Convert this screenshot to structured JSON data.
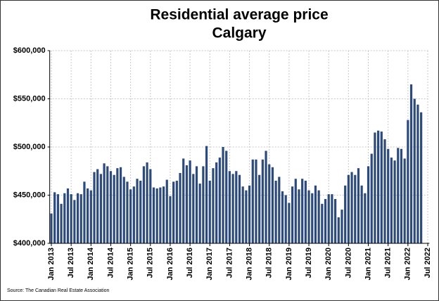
{
  "chart_data": {
    "type": "bar",
    "title": "Residential average price",
    "subtitle": "Calgary",
    "source": "Source: The Canadian Real Estate Association",
    "categories": [
      "Jan 2013",
      null,
      null,
      null,
      null,
      null,
      "Jul 2013",
      null,
      null,
      null,
      null,
      null,
      "Jan 2014",
      null,
      null,
      null,
      null,
      null,
      "Jul 2014",
      null,
      null,
      null,
      null,
      null,
      "Jan 2015",
      null,
      null,
      null,
      null,
      null,
      "Jul 2015",
      null,
      null,
      null,
      null,
      null,
      "Jan 2016",
      null,
      null,
      null,
      null,
      null,
      "Jul 2016",
      null,
      null,
      null,
      null,
      null,
      "Jan 2017",
      null,
      null,
      null,
      null,
      null,
      "Jul 2017",
      null,
      null,
      null,
      null,
      null,
      "Jan 2018",
      null,
      null,
      null,
      null,
      null,
      "Jul 2018",
      null,
      null,
      null,
      null,
      null,
      "Jan 2019",
      null,
      null,
      null,
      null,
      null,
      "Jul 2019",
      null,
      null,
      null,
      null,
      null,
      "Jan 2020",
      null,
      null,
      null,
      null,
      null,
      "Jul 2020",
      null,
      null,
      null,
      null,
      null,
      "Jan 2021",
      null,
      null,
      null,
      null,
      null,
      "Jul 2021",
      null,
      null,
      null,
      null,
      null,
      "Jan 2022",
      null,
      null,
      null,
      null,
      null,
      "Jul 2022"
    ],
    "values": [
      431000,
      453000,
      451000,
      441000,
      452000,
      457000,
      451000,
      445000,
      452000,
      451000,
      464000,
      457000,
      455000,
      474000,
      477000,
      472000,
      483000,
      480000,
      475000,
      471000,
      478000,
      479000,
      469000,
      464000,
      456000,
      459000,
      467000,
      465000,
      480000,
      484000,
      477000,
      458000,
      457000,
      458000,
      459000,
      466000,
      449000,
      464000,
      465000,
      473000,
      488000,
      481000,
      486000,
      472000,
      480000,
      462000,
      480000,
      501000,
      465000,
      478000,
      484000,
      489000,
      500000,
      496000,
      475000,
      472000,
      475000,
      471000,
      459000,
      455000,
      460000,
      487000,
      487000,
      471000,
      487000,
      496000,
      482000,
      479000,
      465000,
      469000,
      454000,
      450000,
      442000,
      459000,
      467000,
      456000,
      467000,
      465000,
      455000,
      452000,
      460000,
      455000,
      441000,
      446000,
      451000,
      451000,
      446000,
      427000,
      435000,
      460000,
      471000,
      474000,
      471000,
      478000,
      460000,
      452000,
      480000,
      493000,
      515000,
      517000,
      516000,
      508000,
      498000,
      489000,
      486000,
      499000,
      498000,
      488000,
      528000,
      565000,
      550000,
      544000,
      536000,
      null,
      null
    ],
    "color": "#2c4a7c",
    "ylim": [
      400000,
      600000
    ],
    "yticks": [
      {
        "value": 400000,
        "label": "$400,000"
      },
      {
        "value": 450000,
        "label": "$450,000"
      },
      {
        "value": 500000,
        "label": "$500,000"
      },
      {
        "value": 550000,
        "label": "$550,000"
      },
      {
        "value": 600000,
        "label": "$600,000"
      }
    ],
    "grid": true
  }
}
